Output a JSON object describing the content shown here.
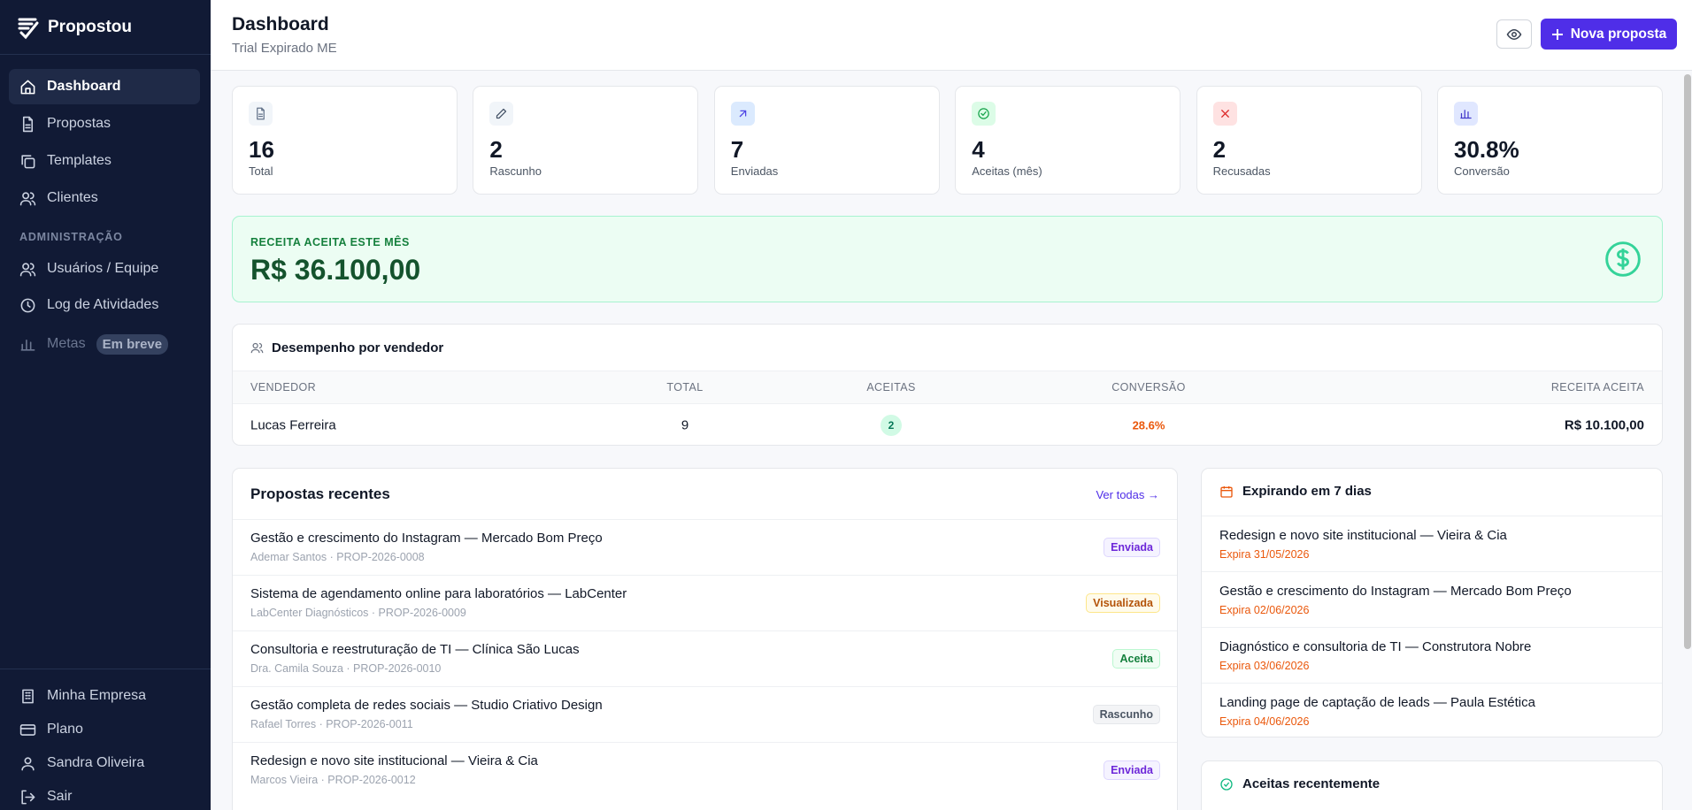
{
  "sidebar": {
    "brand": "Propostou",
    "nav": [
      "Dashboard",
      "Propostas",
      "Templates",
      "Clientes"
    ],
    "section_label": "ADMINISTRAÇÃO",
    "admin_nav": [
      "Usuários / Equipe",
      "Log de Atividades"
    ],
    "metas": {
      "label": "Metas",
      "badge": "Em breve"
    },
    "footer_nav": [
      "Minha Empresa",
      "Plano",
      "Sandra Oliveira",
      "Sair"
    ]
  },
  "header": {
    "title": "Dashboard",
    "subtitle": "Trial Expirado ME",
    "button": "Nova proposta"
  },
  "stats": [
    {
      "value": "16",
      "label": "Total"
    },
    {
      "value": "2",
      "label": "Rascunho"
    },
    {
      "value": "7",
      "label": "Enviadas"
    },
    {
      "value": "4",
      "label": "Aceitas (mês)"
    },
    {
      "value": "2",
      "label": "Recusadas"
    },
    {
      "value": "30.8%",
      "label": "Conversão"
    }
  ],
  "revenue": {
    "label": "RECEITA ACEITA ESTE MÊS",
    "value": "R$ 36.100,00"
  },
  "performance": {
    "title": "Desempenho por vendedor",
    "columns": [
      "VENDEDOR",
      "TOTAL",
      "ACEITAS",
      "CONVERSÃO",
      "RECEITA ACEITA"
    ],
    "rows": [
      [
        "Lucas Ferreira",
        "9",
        "2",
        "28.6%",
        "R$ 10.100,00"
      ]
    ]
  },
  "recent": {
    "title": "Propostas recentes",
    "link": "Ver todas →",
    "items": [
      {
        "title": "Gestão e crescimento do Instagram — Mercado Bom Preço",
        "meta": "Ademar Santos · PROP-2026-0008",
        "status": "Enviada"
      },
      {
        "title": "Sistema de agendamento online para laboratórios — LabCenter",
        "meta": "LabCenter Diagnósticos · PROP-2026-0009",
        "status": "Visualizada"
      },
      {
        "title": "Consultoria e reestruturação de TI — Clínica São Lucas",
        "meta": "Dra. Camila Souza · PROP-2026-0010",
        "status": "Aceita"
      },
      {
        "title": "Gestão completa de redes sociais — Studio Criativo Design",
        "meta": "Rafael Torres · PROP-2026-0011",
        "status": "Rascunho"
      },
      {
        "title": "Redesign e novo site institucional — Vieira & Cia",
        "meta": "Marcos Vieira · PROP-2026-0012",
        "status": "Enviada"
      }
    ]
  },
  "expiring": {
    "title": "Expirando em 7 dias",
    "items": [
      {
        "title": "Redesign e novo site institucional — Vieira & Cia",
        "date": "Expira 31/05/2026"
      },
      {
        "title": "Gestão e crescimento do Instagram — Mercado Bom Preço",
        "date": "Expira 02/06/2026"
      },
      {
        "title": "Diagnóstico e consultoria de TI — Construtora Nobre",
        "date": "Expira 03/06/2026"
      },
      {
        "title": "Landing page de captação de leads — Paula Estética",
        "date": "Expira 04/06/2026"
      }
    ]
  },
  "accepted": {
    "title": "Aceitas recentemente"
  }
}
